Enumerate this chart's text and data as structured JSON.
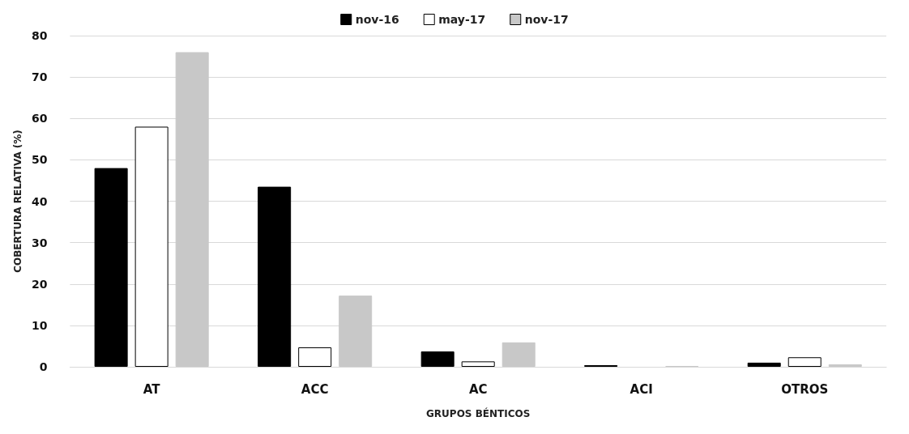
{
  "chart_data": {
    "type": "bar",
    "xlabel": "GRUPOS BÉNTICOS",
    "ylabel": "COBERTURA RELATIVA (%)",
    "categories": [
      "AT",
      "ACC",
      "AC",
      "ACI",
      "OTROS"
    ],
    "series": [
      {
        "name": "nov-16",
        "color": "#000000",
        "values": [
          48,
          43.5,
          3.7,
          0.4,
          1.0
        ]
      },
      {
        "name": "may-17",
        "color": "#ffffff",
        "values": [
          58,
          4.7,
          1.3,
          0,
          2.3
        ]
      },
      {
        "name": "nov-17",
        "color": "#c8c8c8",
        "values": [
          76,
          17.2,
          5.9,
          0.2,
          0.6
        ]
      }
    ],
    "ylim": [
      0,
      80
    ],
    "yticks": [
      0,
      10,
      20,
      30,
      40,
      50,
      60,
      70,
      80
    ],
    "grid": "y",
    "legend": "top"
  }
}
